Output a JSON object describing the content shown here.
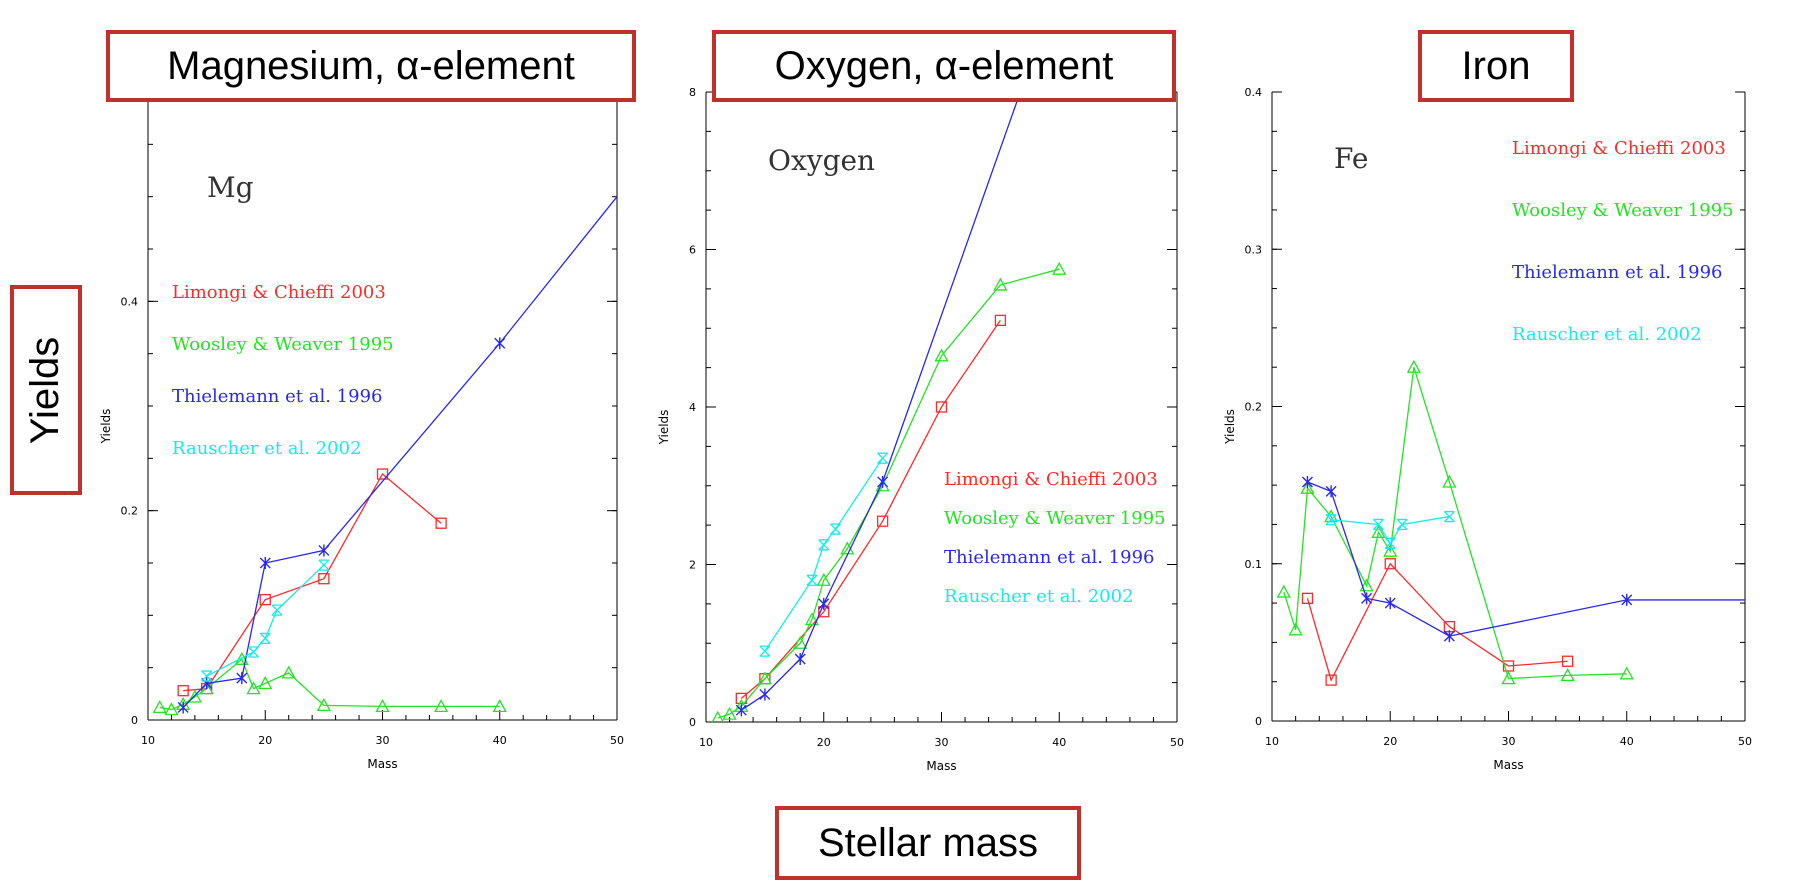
{
  "annotations": {
    "magnesium": "Magnesium, α-element",
    "oxygen": "Oxygen, α-element",
    "iron": "Iron",
    "yields": "Yields",
    "stellar_mass": "Stellar mass"
  },
  "colors": {
    "Limongi & Chieffi 2003": "#ff2a2a",
    "Woosley & Weaver 1995": "#22e522",
    "Thielemann et al. 1996": "#2828ee",
    "Rauscher et al. 2002": "#11eeee",
    "box": "#c0312b"
  },
  "chart_data": [
    {
      "type": "line",
      "title": "Mg",
      "xlabel": "Mass",
      "ylabel": "Yields",
      "xlim": [
        10,
        50
      ],
      "ylim": [
        0,
        0.6
      ],
      "xticks": [
        "10",
        "20",
        "30",
        "40",
        "50"
      ],
      "yticks": [
        {
          "v": 0,
          "label": "0"
        },
        {
          "v": 0.2,
          "label": "0.2"
        },
        {
          "v": 0.4,
          "label": "0.4"
        }
      ],
      "legend": [
        "Limongi & Chieffi 2003",
        "Woosley & Weaver 1995",
        "Thielemann et al. 1996",
        "Rauscher et al. 2002"
      ],
      "series": [
        {
          "name": "Limongi & Chieffi 2003",
          "marker": "square",
          "x": [
            13,
            15,
            20,
            25,
            30,
            35
          ],
          "y": [
            0.028,
            0.03,
            0.115,
            0.135,
            0.235,
            0.188
          ]
        },
        {
          "name": "Woosley & Weaver 1995",
          "marker": "triangle",
          "x": [
            11,
            12,
            13,
            14,
            15,
            18,
            19,
            20,
            22,
            25,
            30,
            35,
            40
          ],
          "y": [
            0.012,
            0.01,
            0.015,
            0.022,
            0.03,
            0.058,
            0.03,
            0.035,
            0.045,
            0.014,
            0.013,
            0.013,
            0.013
          ]
        },
        {
          "name": "Thielemann et al. 1996",
          "marker": "asterisk",
          "x": [
            13,
            15,
            18,
            20,
            25,
            40,
            50
          ],
          "y": [
            0.012,
            0.035,
            0.04,
            0.15,
            0.162,
            0.36,
            0.5
          ]
        },
        {
          "name": "Rauscher et al. 2002",
          "marker": "crossbox",
          "x": [
            15,
            19,
            20,
            21,
            25
          ],
          "y": [
            0.042,
            0.065,
            0.078,
            0.105,
            0.148
          ]
        }
      ]
    },
    {
      "type": "line",
      "title": "Oxygen",
      "xlabel": "Mass",
      "ylabel": "Yields",
      "xlim": [
        10,
        50
      ],
      "ylim": [
        0,
        8
      ],
      "xticks": [
        "10",
        "20",
        "30",
        "40",
        "50"
      ],
      "yticks": [
        {
          "v": 0,
          "label": "0"
        },
        {
          "v": 2,
          "label": "2"
        },
        {
          "v": 4,
          "label": "4"
        },
        {
          "v": 6,
          "label": "6"
        },
        {
          "v": 8,
          "label": "8"
        }
      ],
      "legend": [
        "Limongi & Chieffi 2003",
        "Woosley & Weaver 1995",
        "Thielemann et al. 1996",
        "Rauscher et al. 2002"
      ],
      "series": [
        {
          "name": "Limongi & Chieffi 2003",
          "marker": "square",
          "x": [
            13,
            15,
            20,
            25,
            30,
            35
          ],
          "y": [
            0.3,
            0.55,
            1.4,
            2.55,
            4.0,
            5.1
          ]
        },
        {
          "name": "Woosley & Weaver 1995",
          "marker": "triangle",
          "x": [
            11,
            12,
            13,
            15,
            18,
            19,
            20,
            22,
            25,
            30,
            35,
            40
          ],
          "y": [
            0.05,
            0.1,
            0.2,
            0.55,
            1.0,
            1.3,
            1.8,
            2.2,
            3.0,
            4.65,
            5.55,
            5.75
          ]
        },
        {
          "name": "Thielemann et al. 1996",
          "marker": "asterisk",
          "x": [
            13,
            15,
            18,
            20,
            25,
            40
          ],
          "y": [
            0.15,
            0.35,
            0.8,
            1.5,
            3.05,
            9.4
          ]
        },
        {
          "name": "Rauscher et al. 2002",
          "marker": "crossbox",
          "x": [
            15,
            19,
            20,
            21,
            25
          ],
          "y": [
            0.9,
            1.8,
            2.25,
            2.45,
            3.35
          ]
        }
      ]
    },
    {
      "type": "line",
      "title": "Fe",
      "xlabel": "Mass",
      "ylabel": "Yields",
      "xlim": [
        10,
        50
      ],
      "ylim": [
        0,
        0.4
      ],
      "xticks": [
        "10",
        "20",
        "30",
        "40",
        "50"
      ],
      "yticks": [
        {
          "v": 0,
          "label": "0"
        },
        {
          "v": 0.1,
          "label": "0.1"
        },
        {
          "v": 0.2,
          "label": "0.2"
        },
        {
          "v": 0.3,
          "label": "0.3"
        },
        {
          "v": 0.4,
          "label": "0.4"
        }
      ],
      "legend": [
        "Limongi & Chieffi 2003",
        "Woosley & Weaver 1995",
        "Thielemann et al. 1996",
        "Rauscher et al. 2002"
      ],
      "series": [
        {
          "name": "Limongi & Chieffi 2003",
          "marker": "square",
          "x": [
            13,
            15,
            20,
            25,
            30,
            35
          ],
          "y": [
            0.078,
            0.026,
            0.1,
            0.06,
            0.035,
            0.038
          ]
        },
        {
          "name": "Woosley & Weaver 1995",
          "marker": "triangle",
          "x": [
            11,
            12,
            13,
            15,
            18,
            19,
            20,
            22,
            25,
            30,
            35,
            40
          ],
          "y": [
            0.082,
            0.058,
            0.148,
            0.13,
            0.086,
            0.12,
            0.108,
            0.225,
            0.152,
            0.027,
            0.029,
            0.03
          ]
        },
        {
          "name": "Thielemann et al. 1996",
          "marker": "asterisk",
          "x": [
            13,
            15,
            18,
            20,
            25,
            40,
            50
          ],
          "y": [
            0.152,
            0.146,
            0.078,
            0.075,
            0.054,
            0.077,
            0.077
          ]
        },
        {
          "name": "Rauscher et al. 2002",
          "marker": "crossbox",
          "x": [
            15,
            19,
            20,
            21,
            25
          ],
          "y": [
            0.128,
            0.125,
            0.113,
            0.125,
            0.13
          ]
        }
      ]
    }
  ]
}
